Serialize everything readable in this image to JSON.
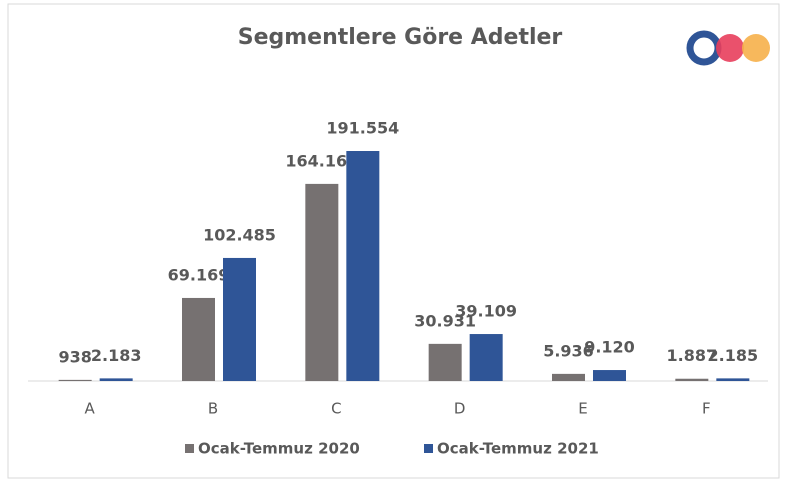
{
  "chart_data": {
    "type": "bar",
    "title": "Segmentlere Göre Adetler",
    "categories": [
      "A",
      "B",
      "C",
      "D",
      "E",
      "F"
    ],
    "series": [
      {
        "name": "Ocak-Temmuz 2020",
        "color": "#767171",
        "values": [
          938,
          69169,
          164161,
          30931,
          5936,
          1887
        ],
        "value_labels": [
          "938",
          "69.169",
          "164.161",
          "30.931",
          "5.936",
          "1.887"
        ]
      },
      {
        "name": "Ocak-Temmuz 2021",
        "color": "#2f5597",
        "values": [
          2183,
          102485,
          191554,
          39109,
          9120,
          2185
        ],
        "value_labels": [
          "2.183",
          "102.485",
          "191.554",
          "39.109",
          "9.120",
          "2.185"
        ]
      }
    ],
    "legend": "bottom"
  }
}
